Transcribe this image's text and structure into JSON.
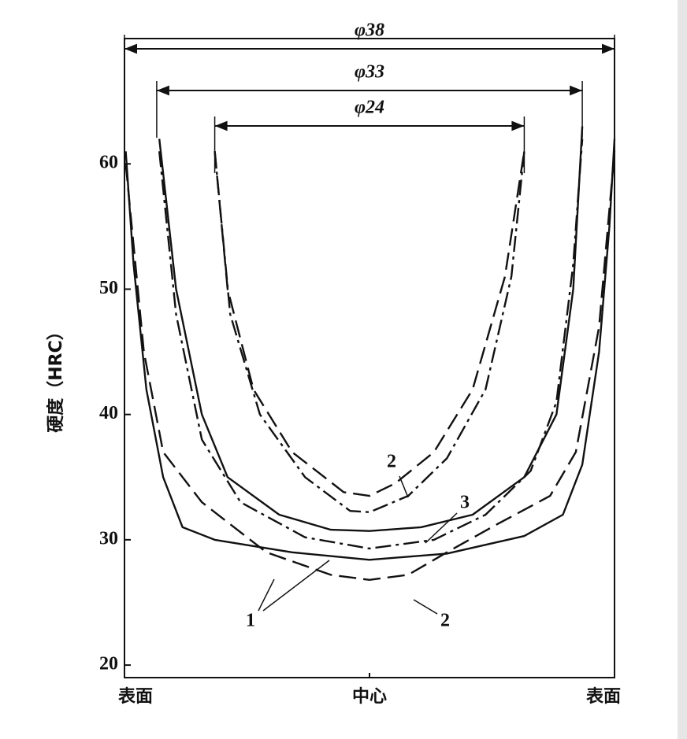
{
  "chart_data": {
    "type": "line",
    "ylabel": "硬度（HRC）",
    "xlim": [
      -19,
      19
    ],
    "ylim": [
      19,
      70
    ],
    "yticks": [
      20,
      30,
      40,
      50,
      60
    ],
    "xticks": [
      {
        "value": -19,
        "label": "表面"
      },
      {
        "value": 0,
        "label": "中心"
      },
      {
        "value": 19,
        "label": "表面"
      }
    ],
    "dimensions": [
      {
        "value": 38,
        "label": "φ38"
      },
      {
        "value": 33,
        "label": "φ33"
      },
      {
        "value": 24,
        "label": "φ24"
      }
    ],
    "annotations": [
      "2",
      "3",
      "1",
      "2"
    ],
    "series": [
      {
        "color": "#111",
        "dash": "solid",
        "x": [
          -18.9,
          -18.3,
          -17.3,
          -16,
          -14.5,
          -12,
          -6,
          0,
          6,
          12,
          15,
          16.5,
          17.8,
          18.6,
          19
        ],
        "values": [
          61,
          52,
          42,
          35,
          31,
          30,
          29,
          28.4,
          28.9,
          30.3,
          32,
          36,
          45,
          55,
          62
        ]
      },
      {
        "color": "#111",
        "dash": "dashed",
        "x": [
          -18.9,
          -17.5,
          -16,
          -13,
          -8,
          -3,
          0,
          3,
          6,
          10,
          14,
          16,
          17.8,
          19
        ],
        "values": [
          60,
          45,
          37,
          33,
          29,
          27.2,
          26.8,
          27.2,
          29,
          31.3,
          33.5,
          37,
          47,
          61
        ]
      },
      {
        "color": "#111",
        "dash": "solid",
        "x": [
          -16.3,
          -15,
          -13,
          -11,
          -7,
          -3,
          0,
          4,
          8,
          12,
          14.5,
          15.8,
          16.5
        ],
        "values": [
          62,
          50,
          40,
          35,
          32,
          30.8,
          30.7,
          31,
          32,
          35,
          40,
          50,
          63
        ]
      },
      {
        "color": "#111",
        "dash": "dashdot",
        "x": [
          -16.3,
          -15,
          -13,
          -10,
          -5,
          0,
          5,
          9,
          12.5,
          14.5,
          15.8,
          16.5
        ],
        "values": [
          61,
          48,
          38,
          33,
          30.2,
          29.3,
          30,
          32,
          35.5,
          41,
          52,
          62
        ]
      },
      {
        "color": "#111",
        "dash": "dashed",
        "x": [
          -12,
          -11,
          -9,
          -6,
          -2,
          0,
          2,
          5,
          8,
          10.5,
          12
        ],
        "values": [
          61,
          50,
          42,
          37,
          33.8,
          33.5,
          34.5,
          37,
          42,
          51,
          61
        ]
      },
      {
        "color": "#111",
        "dash": "dashdot",
        "x": [
          -12,
          -10.8,
          -8.5,
          -5,
          -1.5,
          0,
          3,
          6,
          9,
          11,
          12
        ],
        "values": [
          61,
          48,
          40,
          35,
          32.3,
          32.2,
          33.5,
          36.5,
          42,
          51,
          61
        ]
      }
    ]
  }
}
